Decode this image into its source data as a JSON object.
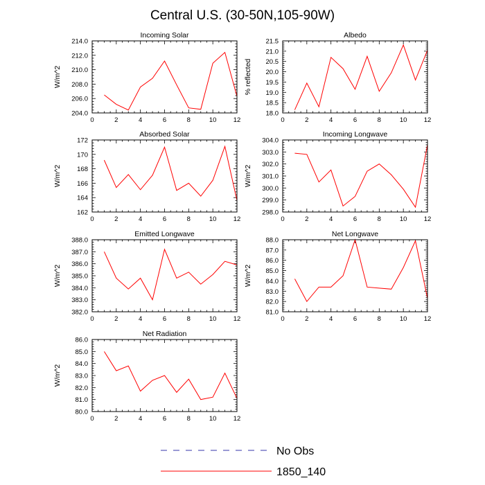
{
  "title": "Central U.S. (30-50N,105-90W)",
  "legend": {
    "entries": [
      {
        "label": "No Obs",
        "color": "#3333aa",
        "dashed": true
      },
      {
        "label": "1850_140",
        "color": "#ff0000",
        "dashed": false
      }
    ]
  },
  "chart_data": [
    {
      "type": "line",
      "title": "Incoming Solar",
      "ylabel": "W/m^2",
      "xlim": [
        0,
        12
      ],
      "xticks": [
        0,
        2,
        4,
        6,
        8,
        10,
        12
      ],
      "ylim": [
        204,
        214
      ],
      "yticks": [
        204.0,
        206.0,
        208.0,
        210.0,
        212.0,
        214.0
      ],
      "ydecimals": 1,
      "x": [
        1,
        2,
        3,
        4,
        5,
        6,
        7,
        8,
        9,
        10,
        11,
        12
      ],
      "series": [
        {
          "name": "1850_140",
          "color": "#ff0000",
          "values": [
            206.5,
            205.2,
            204.4,
            207.6,
            208.8,
            211.2,
            207.9,
            204.7,
            204.5,
            210.9,
            212.4,
            206.3
          ]
        }
      ]
    },
    {
      "type": "line",
      "title": "Albedo",
      "ylabel": "% reflected",
      "xlim": [
        0,
        12
      ],
      "xticks": [
        0,
        2,
        4,
        6,
        8,
        10,
        12
      ],
      "ylim": [
        18,
        21.5
      ],
      "yticks": [
        18.0,
        18.5,
        19.0,
        19.5,
        20.0,
        20.5,
        21.0,
        21.5
      ],
      "ydecimals": 1,
      "x": [
        1,
        2,
        3,
        4,
        5,
        6,
        7,
        8,
        9,
        10,
        11,
        12
      ],
      "series": [
        {
          "name": "1850_140",
          "color": "#ff0000",
          "values": [
            18.15,
            19.45,
            18.3,
            20.7,
            20.15,
            19.15,
            20.75,
            19.05,
            19.95,
            21.3,
            19.6,
            21.05
          ]
        }
      ]
    },
    {
      "type": "line",
      "title": "Absorbed Solar",
      "ylabel": "W/m^2",
      "xlim": [
        0,
        12
      ],
      "xticks": [
        0,
        2,
        4,
        6,
        8,
        10,
        12
      ],
      "ylim": [
        162,
        172
      ],
      "yticks": [
        162,
        164,
        166,
        168,
        170,
        172
      ],
      "ydecimals": 0,
      "x": [
        1,
        2,
        3,
        4,
        5,
        6,
        7,
        8,
        9,
        10,
        11,
        12
      ],
      "series": [
        {
          "name": "1850_140",
          "color": "#ff0000",
          "values": [
            169.2,
            165.4,
            167.2,
            165.1,
            167.1,
            171.0,
            165.0,
            166.0,
            164.2,
            166.4,
            171.1,
            163.6
          ]
        }
      ]
    },
    {
      "type": "line",
      "title": "Incoming Longwave",
      "ylabel": "W/m^2",
      "xlim": [
        0,
        12
      ],
      "xticks": [
        0,
        2,
        4,
        6,
        8,
        10,
        12
      ],
      "ylim": [
        298,
        304
      ],
      "yticks": [
        298.0,
        299.0,
        300.0,
        301.0,
        302.0,
        303.0,
        304.0
      ],
      "ydecimals": 1,
      "x": [
        1,
        2,
        3,
        4,
        5,
        6,
        7,
        8,
        9,
        10,
        11,
        12
      ],
      "series": [
        {
          "name": "1850_140",
          "color": "#ff0000",
          "values": [
            302.9,
            302.8,
            300.5,
            301.5,
            298.5,
            299.3,
            301.4,
            302.0,
            301.1,
            299.9,
            298.4,
            303.6
          ]
        }
      ]
    },
    {
      "type": "line",
      "title": "Emitted Longwave",
      "ylabel": "W/m^2",
      "xlim": [
        0,
        12
      ],
      "xticks": [
        0,
        2,
        4,
        6,
        8,
        10,
        12
      ],
      "ylim": [
        382,
        388
      ],
      "yticks": [
        382.0,
        383.0,
        384.0,
        385.0,
        386.0,
        387.0,
        388.0
      ],
      "ydecimals": 1,
      "x": [
        1,
        2,
        3,
        4,
        5,
        6,
        7,
        8,
        9,
        10,
        11,
        12
      ],
      "series": [
        {
          "name": "1850_140",
          "color": "#ff0000",
          "values": [
            387.0,
            384.8,
            383.9,
            384.8,
            383.0,
            387.2,
            384.8,
            385.3,
            384.3,
            385.1,
            386.2,
            385.9
          ]
        }
      ]
    },
    {
      "type": "line",
      "title": "Net Longwave",
      "ylabel": "W/m^2",
      "xlim": [
        0,
        12
      ],
      "xticks": [
        0,
        2,
        4,
        6,
        8,
        10,
        12
      ],
      "ylim": [
        81,
        88
      ],
      "yticks": [
        81.0,
        82.0,
        83.0,
        84.0,
        85.0,
        86.0,
        87.0,
        88.0
      ],
      "ydecimals": 1,
      "x": [
        1,
        2,
        3,
        4,
        5,
        6,
        7,
        8,
        9,
        10,
        11,
        12
      ],
      "series": [
        {
          "name": "1850_140",
          "color": "#ff0000",
          "values": [
            84.2,
            82.0,
            83.4,
            83.4,
            84.5,
            88.0,
            83.4,
            83.3,
            83.2,
            85.3,
            87.9,
            82.3
          ]
        }
      ]
    },
    {
      "type": "line",
      "title": "Net Radiation",
      "ylabel": "W/m^2",
      "xlim": [
        0,
        12
      ],
      "xticks": [
        0,
        2,
        4,
        6,
        8,
        10,
        12
      ],
      "ylim": [
        80,
        86
      ],
      "yticks": [
        80.0,
        81.0,
        82.0,
        83.0,
        84.0,
        85.0,
        86.0
      ],
      "ydecimals": 1,
      "x": [
        1,
        2,
        3,
        4,
        5,
        6,
        7,
        8,
        9,
        10,
        11,
        12
      ],
      "series": [
        {
          "name": "1850_140",
          "color": "#ff0000",
          "values": [
            85.0,
            83.4,
            83.8,
            81.7,
            82.6,
            83.0,
            81.6,
            82.7,
            81.0,
            81.2,
            83.2,
            81.1
          ]
        }
      ]
    }
  ]
}
